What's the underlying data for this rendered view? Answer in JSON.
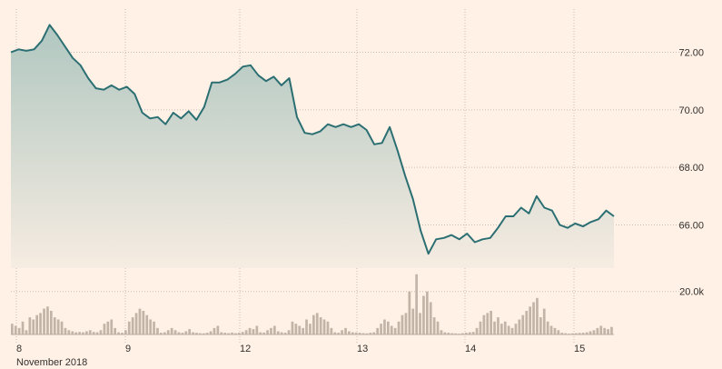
{
  "chart_data": [
    {
      "type": "area",
      "xlabel": "November 2018",
      "ylim": [
        64.5,
        73.5
      ],
      "grid": true,
      "colors": {
        "line": "#2b6f73",
        "fill_top": "#b0c7c0",
        "fill_bottom": "#f6ece2",
        "grid": "#c9bfb6",
        "text": "#33302e"
      },
      "y_ticks": [
        72,
        70,
        68,
        66
      ],
      "y_tick_labels": [
        "72.00",
        "70.00",
        "68.00",
        "66.00"
      ],
      "x_ticks": [
        {
          "day": 8,
          "label": "8"
        },
        {
          "day": 9,
          "label": "9"
        },
        {
          "day": 12,
          "label": "12"
        },
        {
          "day": 13,
          "label": "13"
        },
        {
          "day": 14,
          "label": "14"
        },
        {
          "day": 15,
          "label": "15"
        }
      ],
      "x": [
        "Nov 8 09:30",
        "Nov 8 10:00",
        "Nov 8 10:30",
        "Nov 8 11:00",
        "Nov 8 11:30",
        "Nov 8 12:00",
        "Nov 8 12:30",
        "Nov 8 13:00",
        "Nov 8 13:30",
        "Nov 8 14:00",
        "Nov 8 14:30",
        "Nov 8 15:00",
        "Nov 8 15:30",
        "Nov 8 16:00",
        "Nov 9 09:30",
        "Nov 9 10:00",
        "Nov 9 10:30",
        "Nov 9 11:00",
        "Nov 9 11:30",
        "Nov 9 12:00",
        "Nov 9 12:30",
        "Nov 9 13:00",
        "Nov 9 13:30",
        "Nov 9 14:00",
        "Nov 9 14:30",
        "Nov 9 15:00",
        "Nov 9 15:30",
        "Nov 9 16:00",
        "Nov 12 09:30",
        "Nov 12 10:00",
        "Nov 12 10:30",
        "Nov 12 11:00",
        "Nov 12 11:30",
        "Nov 12 12:00",
        "Nov 12 12:30",
        "Nov 12 13:00",
        "Nov 12 13:30",
        "Nov 12 14:00",
        "Nov 12 14:30",
        "Nov 12 15:00",
        "Nov 12 15:30",
        "Nov 12 16:00",
        "Nov 13 09:30",
        "Nov 13 10:00",
        "Nov 13 10:30",
        "Nov 13 11:00",
        "Nov 13 11:30",
        "Nov 13 12:00",
        "Nov 13 12:30",
        "Nov 13 13:00",
        "Nov 13 13:30",
        "Nov 13 14:00",
        "Nov 13 14:30",
        "Nov 13 15:00",
        "Nov 13 15:30",
        "Nov 13 16:00",
        "Nov 14 09:30",
        "Nov 14 10:00",
        "Nov 14 10:30",
        "Nov 14 11:00",
        "Nov 14 11:30",
        "Nov 14 12:00",
        "Nov 14 12:30",
        "Nov 14 13:00",
        "Nov 14 13:30",
        "Nov 14 14:00",
        "Nov 14 14:30",
        "Nov 14 15:00",
        "Nov 14 15:30",
        "Nov 14 16:00",
        "Nov 15 09:30",
        "Nov 15 10:00",
        "Nov 15 10:30",
        "Nov 15 11:00",
        "Nov 15 11:30",
        "Nov 15 12:00",
        "Nov 15 12:30",
        "Nov 15 13:00",
        "Nov 15 13:30"
      ],
      "series": [
        {
          "values": [
            72.0,
            72.1,
            72.05,
            72.1,
            72.4,
            72.95,
            72.6,
            72.2,
            71.8,
            71.55,
            71.1,
            70.75,
            70.7,
            70.85,
            70.7,
            70.8,
            70.55,
            69.9,
            69.7,
            69.75,
            69.5,
            69.9,
            69.7,
            69.95,
            69.65,
            70.1,
            70.95,
            70.95,
            71.05,
            71.25,
            71.5,
            71.55,
            71.2,
            71.0,
            71.15,
            70.85,
            71.1,
            69.75,
            69.2,
            69.15,
            69.25,
            69.5,
            69.4,
            69.5,
            69.4,
            69.5,
            69.3,
            68.8,
            68.85,
            69.4,
            68.6,
            67.7,
            66.9,
            65.8,
            65.0,
            65.5,
            65.55,
            65.65,
            65.5,
            65.7,
            65.4,
            65.5,
            65.55,
            65.9,
            66.3,
            66.3,
            66.6,
            66.4,
            67.0,
            66.6,
            66.5,
            66.0,
            65.9,
            66.05,
            65.95,
            66.1,
            66.2,
            66.5,
            66.3
          ]
        }
      ]
    },
    {
      "type": "bar",
      "y_ticks": [
        20000
      ],
      "y_tick_labels": [
        "20.0k"
      ],
      "ylim": [
        0,
        33000
      ],
      "color": "#c2b5a8",
      "values": [
        5000,
        4000,
        3000,
        6000,
        2000,
        8000,
        7000,
        9000,
        10000,
        12000,
        13000,
        11000,
        8000,
        7000,
        6000,
        3000,
        2000,
        1500,
        1000,
        1200,
        1000,
        1500,
        2000,
        1200,
        1000,
        2000,
        5000,
        6000,
        7000,
        3000,
        1000,
        800,
        2000,
        6000,
        8000,
        10000,
        12000,
        11000,
        9000,
        7000,
        6000,
        3000,
        800,
        1000,
        2000,
        3000,
        2000,
        1000,
        800,
        1500,
        2500,
        1000,
        800,
        600,
        500,
        800,
        1500,
        3000,
        4000,
        1000,
        800,
        600,
        900,
        600,
        800,
        1200,
        2000,
        3000,
        2500,
        4000,
        1000,
        900,
        2000,
        3000,
        4000,
        1500,
        1000,
        800,
        2000,
        6000,
        5000,
        4000,
        3000,
        7000,
        5000,
        9000,
        10000,
        8000,
        7000,
        6000,
        3000,
        1000,
        800,
        2000,
        3000,
        1500,
        1000,
        900,
        800,
        600,
        500,
        800,
        1000,
        3000,
        5000,
        7000,
        6000,
        4000,
        3000,
        6000,
        9000,
        10000,
        20000,
        12000,
        28000,
        10000,
        18000,
        20000,
        15000,
        8000,
        6000,
        2000,
        1000,
        800,
        600,
        500,
        400,
        600,
        800,
        1000,
        1200,
        3000,
        6000,
        9000,
        10000,
        11000,
        6000,
        8000,
        5000,
        6000,
        4000,
        3000,
        5000,
        7000,
        9000,
        11000,
        13000,
        15000,
        17000,
        8000,
        12000,
        6000,
        4000,
        3000,
        2000,
        800,
        600,
        400,
        500,
        600,
        700,
        800,
        1000,
        1500,
        2000,
        3000,
        4000,
        3000,
        2500,
        3500
      ]
    }
  ]
}
